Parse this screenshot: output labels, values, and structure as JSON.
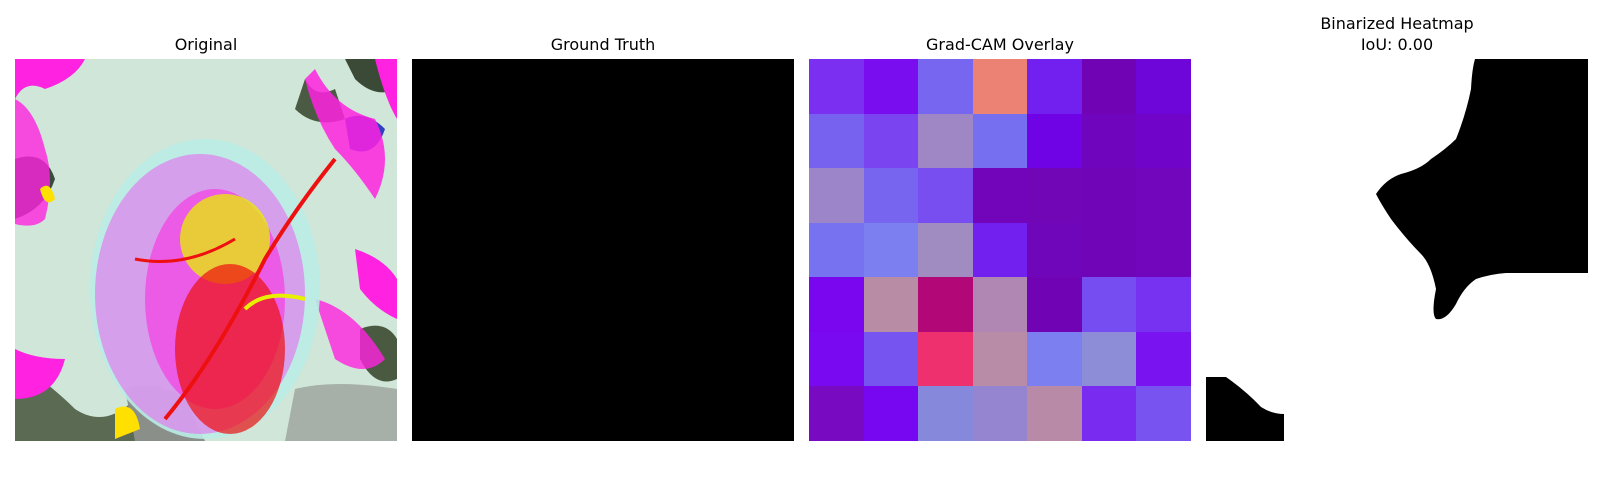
{
  "panels": [
    {
      "title": "Original"
    },
    {
      "title": "Ground Truth"
    },
    {
      "title": "Grad-CAM Overlay"
    },
    {
      "title_line1": "Binarized Heatmap",
      "title_line2": "IoU: 0.00"
    }
  ],
  "gradcam_colors": [
    [
      "#7b2ff0",
      "#7a0cf0",
      "#7766f0",
      "#ec8274",
      "#7220f0",
      "#7003b4",
      "#6f06d9"
    ],
    [
      "#7762f0",
      "#7a45f0",
      "#9f86c5",
      "#766ff0",
      "#7003e6",
      "#7005be",
      "#7004c9"
    ],
    [
      "#9c85c8",
      "#7765f0",
      "#794ef0",
      "#7205b9",
      "#7106b6",
      "#7005b8",
      "#7106bd"
    ],
    [
      "#7772f0",
      "#7b7ff0",
      "#a18cc2",
      "#7220f0",
      "#7006ba",
      "#7005b8",
      "#7106bc"
    ],
    [
      "#7a06f0",
      "#b88ca5",
      "#b20777",
      "#b086b2",
      "#7004b4",
      "#754df0",
      "#7632f0"
    ],
    [
      "#7809f0",
      "#7654f0",
      "#ee306e",
      "#b88ba6",
      "#7b7ff0",
      "#8d8cd7",
      "#7914f0"
    ],
    [
      "#780ac2",
      "#7607f0",
      "#8689db",
      "#9584cf",
      "#b88aa7",
      "#7a2bf0",
      "#7853f0"
    ]
  ]
}
